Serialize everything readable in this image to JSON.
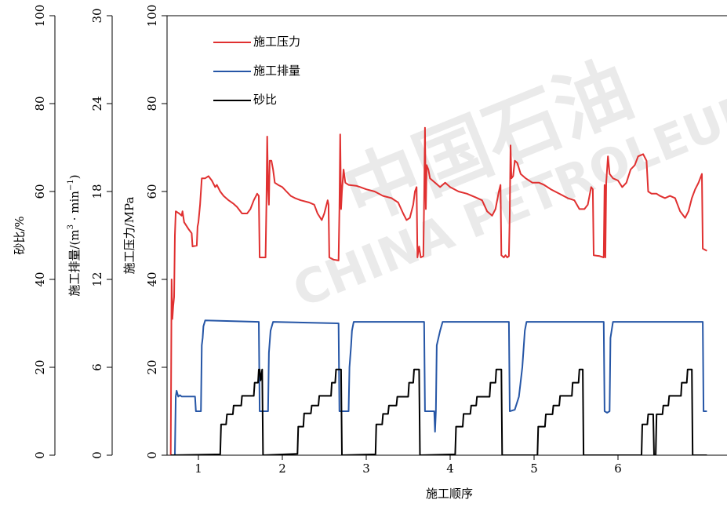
{
  "chart_data": {
    "type": "line",
    "xlabel": "施工顺序",
    "x_ticks": [
      "1",
      "2",
      "3",
      "4",
      "5",
      "6"
    ],
    "axes": {
      "pressure": {
        "label": "施工压力/MPa",
        "range": [
          0,
          100
        ],
        "ticks": [
          0,
          20,
          40,
          60,
          80,
          100
        ]
      },
      "rate": {
        "label": "施工排量/(m³·min⁻¹)",
        "label_parts": [
          "施工排量/(m",
          "3",
          " · min",
          "−1",
          ")"
        ],
        "range": [
          0,
          30
        ],
        "ticks": [
          0,
          6,
          12,
          18,
          24,
          30
        ]
      },
      "sand": {
        "label": "砂比/%",
        "range": [
          0,
          100
        ],
        "ticks": [
          0,
          20,
          40,
          60,
          80,
          100
        ]
      }
    },
    "legend_placement": "top-left",
    "series": [
      {
        "name": "施工压力",
        "axis": "pressure",
        "color": "#e03030",
        "points": [
          [
            0.67,
            0
          ],
          [
            0.68,
            40
          ],
          [
            0.69,
            31
          ],
          [
            0.7,
            34
          ],
          [
            0.71,
            36
          ],
          [
            0.72,
            50
          ],
          [
            0.73,
            55.5
          ],
          [
            0.77,
            55
          ],
          [
            0.8,
            54.5
          ],
          [
            0.81,
            55.5
          ],
          [
            0.83,
            53
          ],
          [
            0.88,
            51.5
          ],
          [
            0.92,
            50.5
          ],
          [
            0.93,
            47.5
          ],
          [
            0.98,
            47.7
          ],
          [
            0.99,
            52
          ],
          [
            1.0,
            53
          ],
          [
            1.02,
            57
          ],
          [
            1.04,
            63
          ],
          [
            1.08,
            63
          ],
          [
            1.12,
            63.5
          ],
          [
            1.16,
            62.5
          ],
          [
            1.2,
            61
          ],
          [
            1.22,
            61.5
          ],
          [
            1.26,
            60
          ],
          [
            1.3,
            59
          ],
          [
            1.36,
            58
          ],
          [
            1.42,
            57.2
          ],
          [
            1.46,
            56.5
          ],
          [
            1.52,
            55
          ],
          [
            1.58,
            55
          ],
          [
            1.62,
            56
          ],
          [
            1.66,
            58
          ],
          [
            1.7,
            59.5
          ],
          [
            1.72,
            59
          ],
          [
            1.73,
            45
          ],
          [
            1.8,
            45
          ],
          [
            1.81,
            57
          ],
          [
            1.82,
            72.5
          ],
          [
            1.83,
            61
          ],
          [
            1.84,
            57
          ],
          [
            1.85,
            67
          ],
          [
            1.87,
            67
          ],
          [
            1.89,
            65
          ],
          [
            1.91,
            62
          ],
          [
            1.95,
            61.5
          ],
          [
            2.0,
            61
          ],
          [
            2.05,
            60
          ],
          [
            2.1,
            59
          ],
          [
            2.15,
            58.5
          ],
          [
            2.22,
            58
          ],
          [
            2.32,
            57.5
          ],
          [
            2.38,
            57
          ],
          [
            2.42,
            55
          ],
          [
            2.47,
            53.5
          ],
          [
            2.5,
            55
          ],
          [
            2.54,
            58
          ],
          [
            2.55,
            57
          ],
          [
            2.56,
            45
          ],
          [
            2.61,
            44.5
          ],
          [
            2.67,
            44.3
          ],
          [
            2.68,
            56
          ],
          [
            2.69,
            73
          ],
          [
            2.7,
            56
          ],
          [
            2.71,
            60
          ],
          [
            2.73,
            65
          ],
          [
            2.75,
            62
          ],
          [
            2.79,
            61.5
          ],
          [
            2.88,
            61.3
          ],
          [
            2.93,
            61
          ],
          [
            3.0,
            60.5
          ],
          [
            3.1,
            60
          ],
          [
            3.2,
            59
          ],
          [
            3.3,
            58.5
          ],
          [
            3.38,
            57.5
          ],
          [
            3.44,
            55
          ],
          [
            3.48,
            53.5
          ],
          [
            3.52,
            54
          ],
          [
            3.56,
            57
          ],
          [
            3.58,
            60
          ],
          [
            3.6,
            61
          ],
          [
            3.61,
            45
          ],
          [
            3.63,
            47.5
          ],
          [
            3.65,
            45
          ],
          [
            3.68,
            45.3
          ],
          [
            3.69,
            58
          ],
          [
            3.7,
            74.5
          ],
          [
            3.71,
            56
          ],
          [
            3.72,
            66
          ],
          [
            3.74,
            65
          ],
          [
            3.76,
            63
          ],
          [
            3.82,
            62
          ],
          [
            3.88,
            61
          ],
          [
            3.94,
            62
          ],
          [
            4.0,
            61
          ],
          [
            4.1,
            60
          ],
          [
            4.2,
            59.5
          ],
          [
            4.3,
            58.7
          ],
          [
            4.38,
            58
          ],
          [
            4.44,
            55.5
          ],
          [
            4.5,
            54.5
          ],
          [
            4.54,
            56
          ],
          [
            4.58,
            60
          ],
          [
            4.6,
            61.5
          ],
          [
            4.61,
            45.5
          ],
          [
            4.64,
            45
          ],
          [
            4.66,
            45.5
          ],
          [
            4.68,
            45
          ],
          [
            4.7,
            45.3
          ],
          [
            4.71,
            55
          ],
          [
            4.72,
            70.5
          ],
          [
            4.73,
            63
          ],
          [
            4.75,
            63.5
          ],
          [
            4.77,
            67
          ],
          [
            4.8,
            66.5
          ],
          [
            4.84,
            64
          ],
          [
            4.9,
            63
          ],
          [
            4.98,
            62
          ],
          [
            5.06,
            62
          ],
          [
            5.12,
            61.5
          ],
          [
            5.2,
            60.5
          ],
          [
            5.3,
            59.5
          ],
          [
            5.4,
            58.5
          ],
          [
            5.48,
            58
          ],
          [
            5.54,
            56
          ],
          [
            5.6,
            56
          ],
          [
            5.64,
            57
          ],
          [
            5.68,
            61
          ],
          [
            5.7,
            60.5
          ],
          [
            5.71,
            45.5
          ],
          [
            5.78,
            45.3
          ],
          [
            5.83,
            45
          ],
          [
            5.84,
            61.5
          ],
          [
            5.85,
            45
          ],
          [
            5.86,
            62
          ],
          [
            5.88,
            68
          ],
          [
            5.9,
            64
          ],
          [
            5.94,
            63
          ],
          [
            6.0,
            62.5
          ],
          [
            6.05,
            61
          ],
          [
            6.1,
            62
          ],
          [
            6.15,
            65
          ],
          [
            6.2,
            66
          ],
          [
            6.24,
            68
          ],
          [
            6.3,
            68.5
          ],
          [
            6.34,
            67
          ],
          [
            6.36,
            60
          ],
          [
            6.4,
            59.5
          ],
          [
            6.46,
            59.5
          ],
          [
            6.5,
            59
          ],
          [
            6.56,
            58.5
          ],
          [
            6.62,
            59
          ],
          [
            6.68,
            58.5
          ],
          [
            6.74,
            55.5
          ],
          [
            6.8,
            54
          ],
          [
            6.84,
            55.5
          ],
          [
            6.88,
            58.5
          ],
          [
            6.92,
            60.5
          ],
          [
            6.96,
            62
          ],
          [
            7.0,
            64
          ],
          [
            7.01,
            47
          ],
          [
            7.06,
            46.5
          ]
        ]
      },
      {
        "name": "施工排量",
        "axis": "rate",
        "color": "#2656a6",
        "points": [
          [
            0.67,
            0
          ],
          [
            0.72,
            0
          ],
          [
            0.73,
            4
          ],
          [
            0.74,
            4.4
          ],
          [
            0.76,
            4
          ],
          [
            0.78,
            4.1
          ],
          [
            0.8,
            4
          ],
          [
            0.96,
            4
          ],
          [
            0.97,
            3
          ],
          [
            1.03,
            3
          ],
          [
            1.04,
            7.5
          ],
          [
            1.05,
            8
          ],
          [
            1.06,
            8.8
          ],
          [
            1.08,
            9.2
          ],
          [
            1.72,
            9.1
          ],
          [
            1.73,
            3
          ],
          [
            1.83,
            3
          ],
          [
            1.84,
            7
          ],
          [
            1.86,
            8.5
          ],
          [
            1.89,
            9.1
          ],
          [
            2.67,
            9.0
          ],
          [
            2.68,
            3
          ],
          [
            2.79,
            3
          ],
          [
            2.8,
            6
          ],
          [
            2.82,
            7.5
          ],
          [
            2.83,
            8.5
          ],
          [
            2.85,
            9.1
          ],
          [
            3.69,
            9.1
          ],
          [
            3.7,
            3
          ],
          [
            3.81,
            3
          ],
          [
            3.82,
            1.6
          ],
          [
            3.83,
            3
          ],
          [
            3.84,
            7.5
          ],
          [
            3.88,
            8.5
          ],
          [
            3.91,
            9.1
          ],
          [
            4.7,
            9.1
          ],
          [
            4.71,
            3
          ],
          [
            4.77,
            3.1
          ],
          [
            4.82,
            4
          ],
          [
            4.86,
            6
          ],
          [
            4.89,
            8.5
          ],
          [
            4.91,
            9.1
          ],
          [
            5.83,
            9.1
          ],
          [
            5.84,
            3
          ],
          [
            5.87,
            2.9
          ],
          [
            5.9,
            3
          ],
          [
            5.91,
            8
          ],
          [
            5.94,
            9.1
          ],
          [
            7.01,
            9.1
          ],
          [
            7.02,
            3
          ],
          [
            7.06,
            3
          ]
        ]
      },
      {
        "name": "砂比",
        "axis": "sand",
        "color": "#000000",
        "points": [
          [
            0.67,
            0
          ],
          [
            1.26,
            0.2
          ],
          [
            1.27,
            7
          ],
          [
            1.33,
            7
          ],
          [
            1.34,
            9.3
          ],
          [
            1.41,
            9.3
          ],
          [
            1.42,
            11.3
          ],
          [
            1.51,
            11.3
          ],
          [
            1.52,
            13.5
          ],
          [
            1.66,
            13.5
          ],
          [
            1.67,
            16.5
          ],
          [
            1.71,
            16.5
          ],
          [
            1.72,
            19.5
          ],
          [
            1.73,
            19.5
          ],
          [
            1.74,
            17
          ],
          [
            1.76,
            19.5
          ],
          [
            1.77,
            0
          ],
          [
            2.18,
            0.3
          ],
          [
            2.19,
            6.5
          ],
          [
            2.25,
            6.5
          ],
          [
            2.26,
            9.5
          ],
          [
            2.34,
            9.5
          ],
          [
            2.35,
            11.3
          ],
          [
            2.43,
            11.3
          ],
          [
            2.44,
            13.5
          ],
          [
            2.58,
            13.5
          ],
          [
            2.59,
            16.5
          ],
          [
            2.63,
            16.5
          ],
          [
            2.64,
            19.5
          ],
          [
            2.7,
            19.5
          ],
          [
            2.71,
            0
          ],
          [
            3.11,
            0.2
          ],
          [
            3.12,
            7
          ],
          [
            3.19,
            7
          ],
          [
            3.2,
            9.4
          ],
          [
            3.26,
            9.4
          ],
          [
            3.27,
            11.3
          ],
          [
            3.36,
            11.3
          ],
          [
            3.37,
            13.3
          ],
          [
            3.5,
            13.3
          ],
          [
            3.51,
            16.5
          ],
          [
            3.56,
            16.5
          ],
          [
            3.57,
            19.5
          ],
          [
            3.63,
            19.5
          ],
          [
            3.64,
            0
          ],
          [
            4.06,
            0.2
          ],
          [
            4.07,
            6.5
          ],
          [
            4.15,
            6.5
          ],
          [
            4.16,
            9.4
          ],
          [
            4.24,
            9.4
          ],
          [
            4.25,
            11.3
          ],
          [
            4.31,
            11.3
          ],
          [
            4.32,
            13.3
          ],
          [
            4.47,
            13.3
          ],
          [
            4.48,
            16.5
          ],
          [
            4.54,
            16.5
          ],
          [
            4.55,
            19.5
          ],
          [
            4.61,
            19.5
          ],
          [
            4.62,
            0
          ],
          [
            5.04,
            0
          ],
          [
            5.05,
            6.5
          ],
          [
            5.13,
            6.5
          ],
          [
            5.14,
            9.3
          ],
          [
            5.22,
            9.3
          ],
          [
            5.23,
            11.3
          ],
          [
            5.3,
            11.3
          ],
          [
            5.31,
            13.5
          ],
          [
            5.45,
            13.5
          ],
          [
            5.46,
            16.5
          ],
          [
            5.53,
            16.5
          ],
          [
            5.54,
            19.5
          ],
          [
            5.58,
            19.5
          ],
          [
            5.59,
            0
          ],
          [
            6.28,
            0
          ],
          [
            6.29,
            7
          ],
          [
            6.35,
            7
          ],
          [
            6.36,
            9.3
          ],
          [
            6.42,
            9.3
          ],
          [
            6.43,
            0
          ],
          [
            6.45,
            0
          ],
          [
            6.46,
            9.3
          ],
          [
            6.53,
            9.3
          ],
          [
            6.54,
            11.3
          ],
          [
            6.6,
            11.3
          ],
          [
            6.61,
            13.5
          ],
          [
            6.75,
            13.5
          ],
          [
            6.76,
            16.5
          ],
          [
            6.82,
            16.5
          ],
          [
            6.83,
            19.5
          ],
          [
            6.88,
            19.5
          ],
          [
            6.89,
            0
          ],
          [
            7.06,
            0
          ]
        ]
      }
    ]
  },
  "watermark": {
    "logo_text": "中国石油",
    "text": "CHINA PETROLEUM EXP"
  }
}
